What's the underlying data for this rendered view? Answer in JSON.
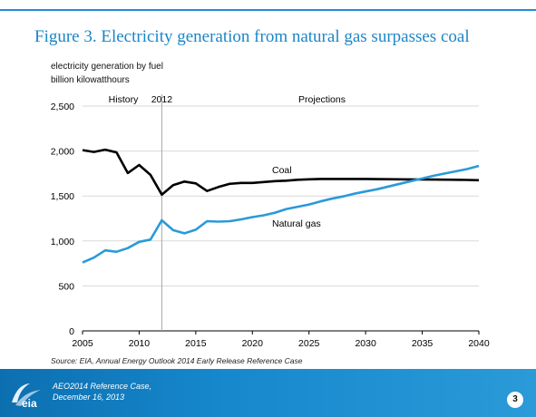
{
  "slide": {
    "title": "Figure 3.  Electricity generation from natural gas surpasses coal",
    "subtitle_line1": "electricity generation by fuel",
    "subtitle_line2": "billion kilowatthours",
    "source": "Source: EIA, Annual Energy Outlook 2014 Early Release Reference Case",
    "footer_line1": "AEO2014 Reference Case,",
    "footer_line2": "December 16, 2013",
    "page_number": "3",
    "logo_text": "eia"
  },
  "colors": {
    "title": "#1a86c8",
    "coal": "#000000",
    "natural_gas": "#2a9ad8",
    "footer": "#1687cc",
    "divider": "#a6a6a6"
  },
  "chart_data": {
    "type": "line",
    "title": "",
    "xlabel": "",
    "ylabel": "",
    "xlim": [
      2005,
      2040
    ],
    "ylim": [
      0,
      2500
    ],
    "xticks": [
      2005,
      2010,
      2015,
      2020,
      2025,
      2030,
      2035,
      2040
    ],
    "yticks": [
      0,
      500,
      1000,
      1500,
      2000,
      2500
    ],
    "ytick_labels": [
      "0",
      "500",
      "1,000",
      "1,500",
      "2,000",
      "2,500"
    ],
    "grid": true,
    "divider_year": 2012,
    "annotations": {
      "history": "History",
      "divider_label": "2012",
      "projections": "Projections"
    },
    "x": [
      2005,
      2006,
      2007,
      2008,
      2009,
      2010,
      2011,
      2012,
      2013,
      2014,
      2015,
      2016,
      2017,
      2018,
      2019,
      2020,
      2021,
      2022,
      2023,
      2024,
      2025,
      2026,
      2027,
      2028,
      2029,
      2030,
      2031,
      2032,
      2033,
      2034,
      2035,
      2036,
      2037,
      2038,
      2039,
      2040
    ],
    "series": [
      {
        "name": "Coal",
        "values": [
          2010,
          1990,
          2015,
          1985,
          1755,
          1845,
          1735,
          1515,
          1620,
          1660,
          1640,
          1555,
          1600,
          1635,
          1645,
          1645,
          1655,
          1665,
          1670,
          1680,
          1685,
          1690,
          1690,
          1690,
          1690,
          1690,
          1688,
          1686,
          1685,
          1684,
          1683,
          1682,
          1681,
          1680,
          1678,
          1675
        ]
      },
      {
        "name": "Natural gas",
        "values": [
          760,
          815,
          895,
          880,
          920,
          990,
          1015,
          1230,
          1120,
          1085,
          1125,
          1220,
          1215,
          1220,
          1240,
          1265,
          1285,
          1315,
          1355,
          1380,
          1405,
          1440,
          1470,
          1495,
          1525,
          1550,
          1575,
          1605,
          1635,
          1665,
          1695,
          1725,
          1750,
          1775,
          1800,
          1835
        ]
      }
    ],
    "series_labels": [
      "Coal",
      "Natural gas"
    ]
  }
}
